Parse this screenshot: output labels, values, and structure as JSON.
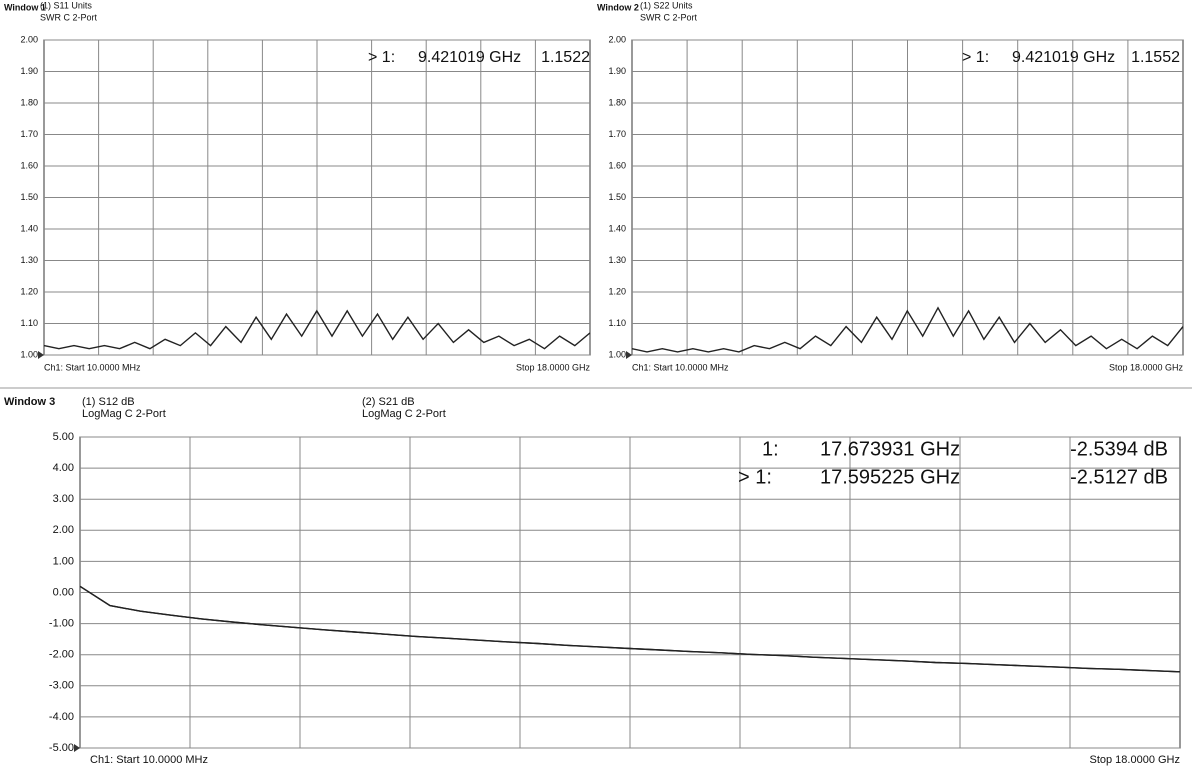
{
  "chart_data": [
    {
      "type": "line",
      "window": "Window 1",
      "subtitle": "SWR C  2-Port",
      "x": [
        0.01,
        0.5,
        1,
        1.5,
        2,
        2.5,
        3,
        3.5,
        4,
        4.5,
        5,
        5.5,
        6,
        6.5,
        7,
        7.5,
        8,
        8.5,
        9,
        9.5,
        10,
        10.5,
        11,
        11.5,
        12,
        12.5,
        13,
        13.5,
        14,
        14.5,
        15,
        15.5,
        16,
        16.5,
        17,
        17.5,
        18
      ],
      "xlim": [
        0.01,
        18
      ],
      "series": [
        {
          "name": "(1) S11 Units",
          "color": "#222222",
          "values": [
            1.03,
            1.02,
            1.03,
            1.02,
            1.03,
            1.02,
            1.04,
            1.02,
            1.05,
            1.03,
            1.07,
            1.03,
            1.09,
            1.04,
            1.12,
            1.05,
            1.13,
            1.06,
            1.14,
            1.06,
            1.14,
            1.06,
            1.13,
            1.05,
            1.12,
            1.05,
            1.1,
            1.04,
            1.08,
            1.04,
            1.06,
            1.03,
            1.05,
            1.02,
            1.06,
            1.03,
            1.07
          ]
        }
      ],
      "ylim": [
        1,
        2
      ],
      "yticks": [
        {
          "value": 1,
          "label": "1.00"
        },
        {
          "value": 1.1,
          "label": "1.10"
        },
        {
          "value": 1.2,
          "label": "1.20"
        },
        {
          "value": 1.3,
          "label": "1.30"
        },
        {
          "value": 1.4,
          "label": "1.40"
        },
        {
          "value": 1.5,
          "label": "1.50"
        },
        {
          "value": 1.6,
          "label": "1.60"
        },
        {
          "value": 1.7,
          "label": "1.70"
        },
        {
          "value": 1.8,
          "label": "1.80"
        },
        {
          "value": 1.9,
          "label": "1.90"
        },
        {
          "value": 2,
          "label": "2.00"
        }
      ],
      "grid": true,
      "markers": [
        {
          "label": "> 1:",
          "frequency": "9.421019 GHz",
          "value": "1.1522"
        }
      ],
      "start": "Ch1: Start  10.0000 MHz",
      "stop": "Stop  18.0000 GHz"
    },
    {
      "type": "line",
      "window": "Window 2",
      "subtitle": "SWR C  2-Port",
      "x": [
        0.01,
        0.5,
        1,
        1.5,
        2,
        2.5,
        3,
        3.5,
        4,
        4.5,
        5,
        5.5,
        6,
        6.5,
        7,
        7.5,
        8,
        8.5,
        9,
        9.5,
        10,
        10.5,
        11,
        11.5,
        12,
        12.5,
        13,
        13.5,
        14,
        14.5,
        15,
        15.5,
        16,
        16.5,
        17,
        17.5,
        18
      ],
      "xlim": [
        0.01,
        18
      ],
      "series": [
        {
          "name": "(1) S22 Units",
          "color": "#222222",
          "values": [
            1.02,
            1.01,
            1.02,
            1.01,
            1.02,
            1.01,
            1.02,
            1.01,
            1.03,
            1.02,
            1.04,
            1.02,
            1.06,
            1.03,
            1.09,
            1.04,
            1.12,
            1.05,
            1.14,
            1.06,
            1.15,
            1.06,
            1.14,
            1.05,
            1.12,
            1.04,
            1.1,
            1.04,
            1.08,
            1.03,
            1.06,
            1.02,
            1.05,
            1.02,
            1.06,
            1.03,
            1.09
          ]
        }
      ],
      "ylim": [
        1,
        2
      ],
      "yticks": [
        {
          "value": 1,
          "label": "1.00"
        },
        {
          "value": 1.1,
          "label": "1.10"
        },
        {
          "value": 1.2,
          "label": "1.20"
        },
        {
          "value": 1.3,
          "label": "1.30"
        },
        {
          "value": 1.4,
          "label": "1.40"
        },
        {
          "value": 1.5,
          "label": "1.50"
        },
        {
          "value": 1.6,
          "label": "1.60"
        },
        {
          "value": 1.7,
          "label": "1.70"
        },
        {
          "value": 1.8,
          "label": "1.80"
        },
        {
          "value": 1.9,
          "label": "1.90"
        },
        {
          "value": 2,
          "label": "2.00"
        }
      ],
      "grid": true,
      "markers": [
        {
          "label": "> 1:",
          "frequency": "9.421019 GHz",
          "value": "1.1552"
        }
      ],
      "start": "Ch1: Start  10.0000 MHz",
      "stop": "Stop  18.0000 GHz"
    },
    {
      "type": "line",
      "window": "Window 3",
      "x": [
        0.01,
        0.5,
        1,
        1.5,
        2,
        2.5,
        3,
        3.5,
        4,
        4.5,
        5,
        5.5,
        6,
        6.5,
        7,
        7.5,
        8,
        8.5,
        9,
        9.5,
        10,
        10.5,
        11,
        11.5,
        12,
        12.5,
        13,
        13.5,
        14,
        14.5,
        15,
        15.5,
        16,
        16.5,
        17,
        17.5,
        18
      ],
      "xlim": [
        0.01,
        18
      ],
      "series": [
        {
          "name": "(1) S12 dB",
          "format": "LogMag C  2-Port",
          "color": "#222222",
          "values": [
            0.2,
            -0.42,
            -0.6,
            -0.73,
            -0.85,
            -0.95,
            -1.04,
            -1.12,
            -1.2,
            -1.27,
            -1.34,
            -1.41,
            -1.47,
            -1.53,
            -1.59,
            -1.64,
            -1.7,
            -1.75,
            -1.8,
            -1.85,
            -1.9,
            -1.94,
            -1.99,
            -2.03,
            -2.08,
            -2.12,
            -2.16,
            -2.2,
            -2.25,
            -2.28,
            -2.32,
            -2.36,
            -2.4,
            -2.44,
            -2.47,
            -2.51,
            -2.55
          ]
        },
        {
          "name": "(2) S21 dB",
          "format": "LogMag C  2-Port",
          "color": "#222222",
          "values": [
            0.2,
            -0.42,
            -0.6,
            -0.73,
            -0.85,
            -0.95,
            -1.04,
            -1.12,
            -1.2,
            -1.27,
            -1.34,
            -1.41,
            -1.47,
            -1.53,
            -1.59,
            -1.64,
            -1.7,
            -1.75,
            -1.8,
            -1.85,
            -1.9,
            -1.94,
            -1.99,
            -2.03,
            -2.08,
            -2.12,
            -2.16,
            -2.2,
            -2.25,
            -2.28,
            -2.32,
            -2.36,
            -2.4,
            -2.44,
            -2.47,
            -2.51,
            -2.55
          ]
        }
      ],
      "ylim": [
        -5,
        5
      ],
      "yticks": [
        {
          "value": 5,
          "label": "5.00"
        },
        {
          "value": 4,
          "label": "4.00"
        },
        {
          "value": 3,
          "label": "3.00"
        },
        {
          "value": 2,
          "label": "2.00"
        },
        {
          "value": 1,
          "label": "1.00"
        },
        {
          "value": 0,
          "label": "0.00"
        },
        {
          "value": -1,
          "label": "-1.00"
        },
        {
          "value": -2,
          "label": "-2.00"
        },
        {
          "value": -3,
          "label": "-3.00"
        },
        {
          "value": -4,
          "label": "-4.00"
        },
        {
          "value": -5,
          "label": "-5.00"
        }
      ],
      "grid": true,
      "markers": [
        {
          "label": "1:",
          "frequency": "17.673931 GHz",
          "value": "-2.5394 dB"
        },
        {
          "label": "> 1:",
          "frequency": "17.595225 GHz",
          "value": "-2.5127 dB"
        }
      ],
      "start": "Ch1: Start  10.0000 MHz",
      "stop": "Stop  18.0000 GHz"
    }
  ]
}
